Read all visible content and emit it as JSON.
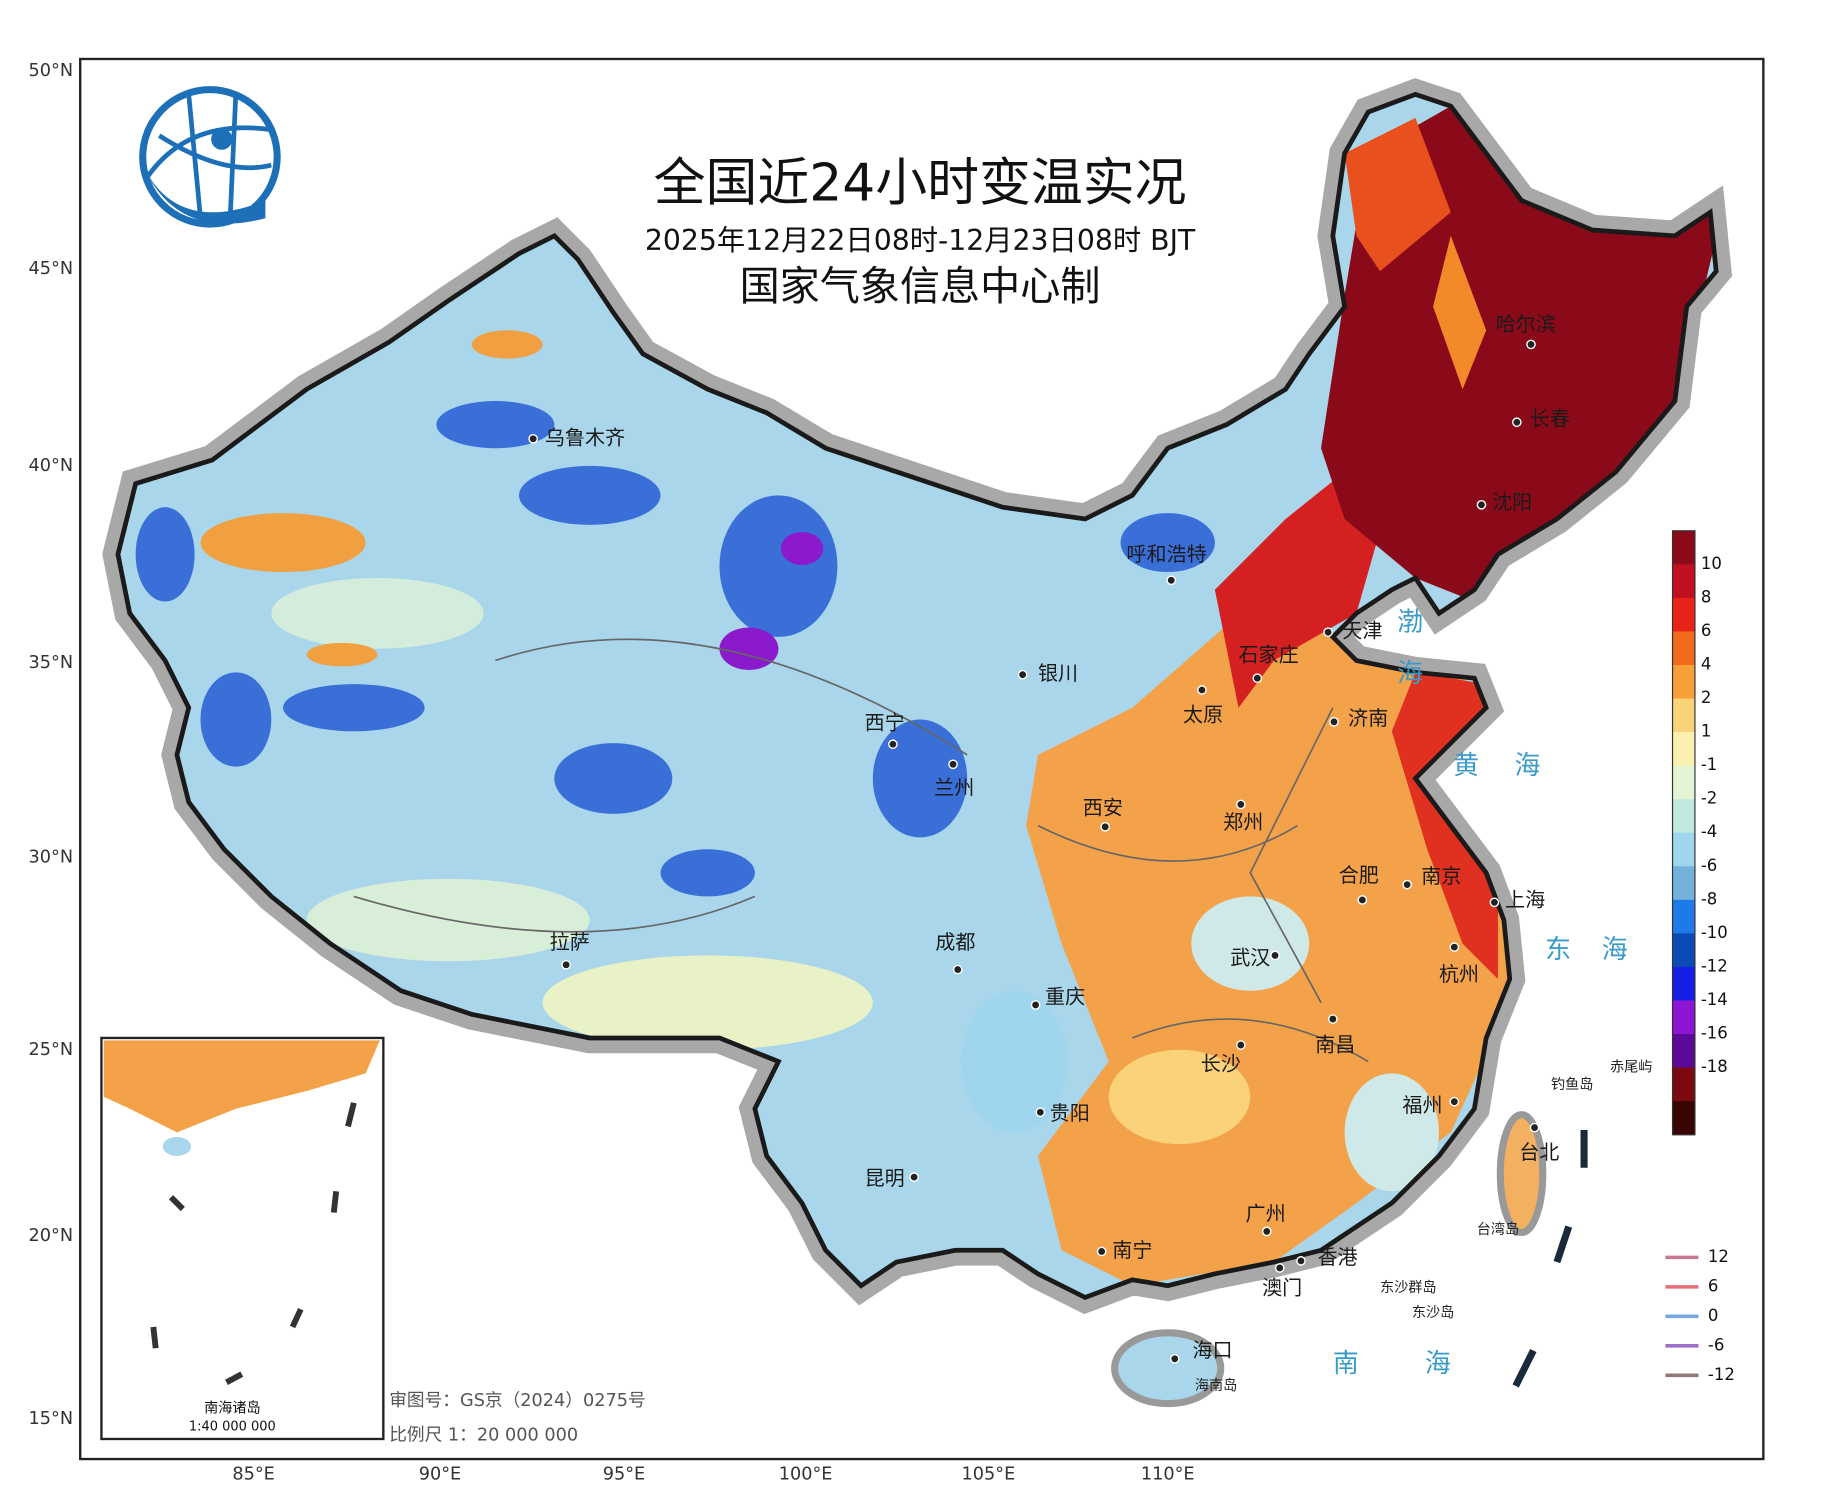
{
  "header": {
    "title": "全国近24小时变温实况",
    "subtitle": "2025年12月22日08时-12月23日08时 BJT",
    "agency": "国家气象信息中心制"
  },
  "latitude_labels": [
    "50°N",
    "45°N",
    "40°N",
    "35°N",
    "30°N",
    "25°N",
    "20°N",
    "15°N"
  ],
  "longitude_labels": [
    "85°E",
    "90°E",
    "95°E",
    "100°E",
    "105°E",
    "110°E"
  ],
  "cities": [
    "乌鲁木齐",
    "呼和浩特",
    "哈尔滨",
    "长春",
    "沈阳",
    "天津",
    "石家庄",
    "银川",
    "太原",
    "济南",
    "西宁",
    "兰州",
    "西安",
    "郑州",
    "合肥",
    "南京",
    "上海",
    "拉萨",
    "成都",
    "武汉",
    "杭州",
    "重庆",
    "长沙",
    "南昌",
    "贵阳",
    "福州",
    "台北",
    "昆明",
    "广州",
    "南宁",
    "香港",
    "澳门",
    "海口"
  ],
  "seas": [
    "渤海",
    "黄海",
    "东海",
    "南海"
  ],
  "islands": [
    "钓鱼岛",
    "赤尾屿",
    "台湾岛",
    "东沙群岛",
    "东沙岛",
    "海南岛"
  ],
  "legend": {
    "values": [
      10,
      8,
      6,
      4,
      2,
      1,
      -1,
      -2,
      -4,
      -6,
      -8,
      -10,
      -12,
      -14,
      -16,
      -18
    ],
    "colors": [
      "#8b0a1a",
      "#c01020",
      "#e82418",
      "#f26a1c",
      "#f7a03a",
      "#f9d27a",
      "#fbf0b0",
      "#e4f5d6",
      "#bfe8df",
      "#9fd6ee",
      "#74b2dc",
      "#1e7ae8",
      "#0a4cb4",
      "#1420e6",
      "#8c16d4",
      "#5a0a96",
      "#7a0a10",
      "#3a0404"
    ]
  },
  "contour_legend": {
    "values": [
      12,
      6,
      0,
      -6,
      -12
    ],
    "colors": [
      "#c87890",
      "#e8707a",
      "#78a8e0",
      "#a070c8",
      "#907878"
    ]
  },
  "footer": {
    "review_number": "审图号：GS京（2024）0275号",
    "scale": "比例尺 1：20 000 000"
  },
  "inset": {
    "title": "南海诸岛",
    "scale": "1:40 000 000"
  }
}
